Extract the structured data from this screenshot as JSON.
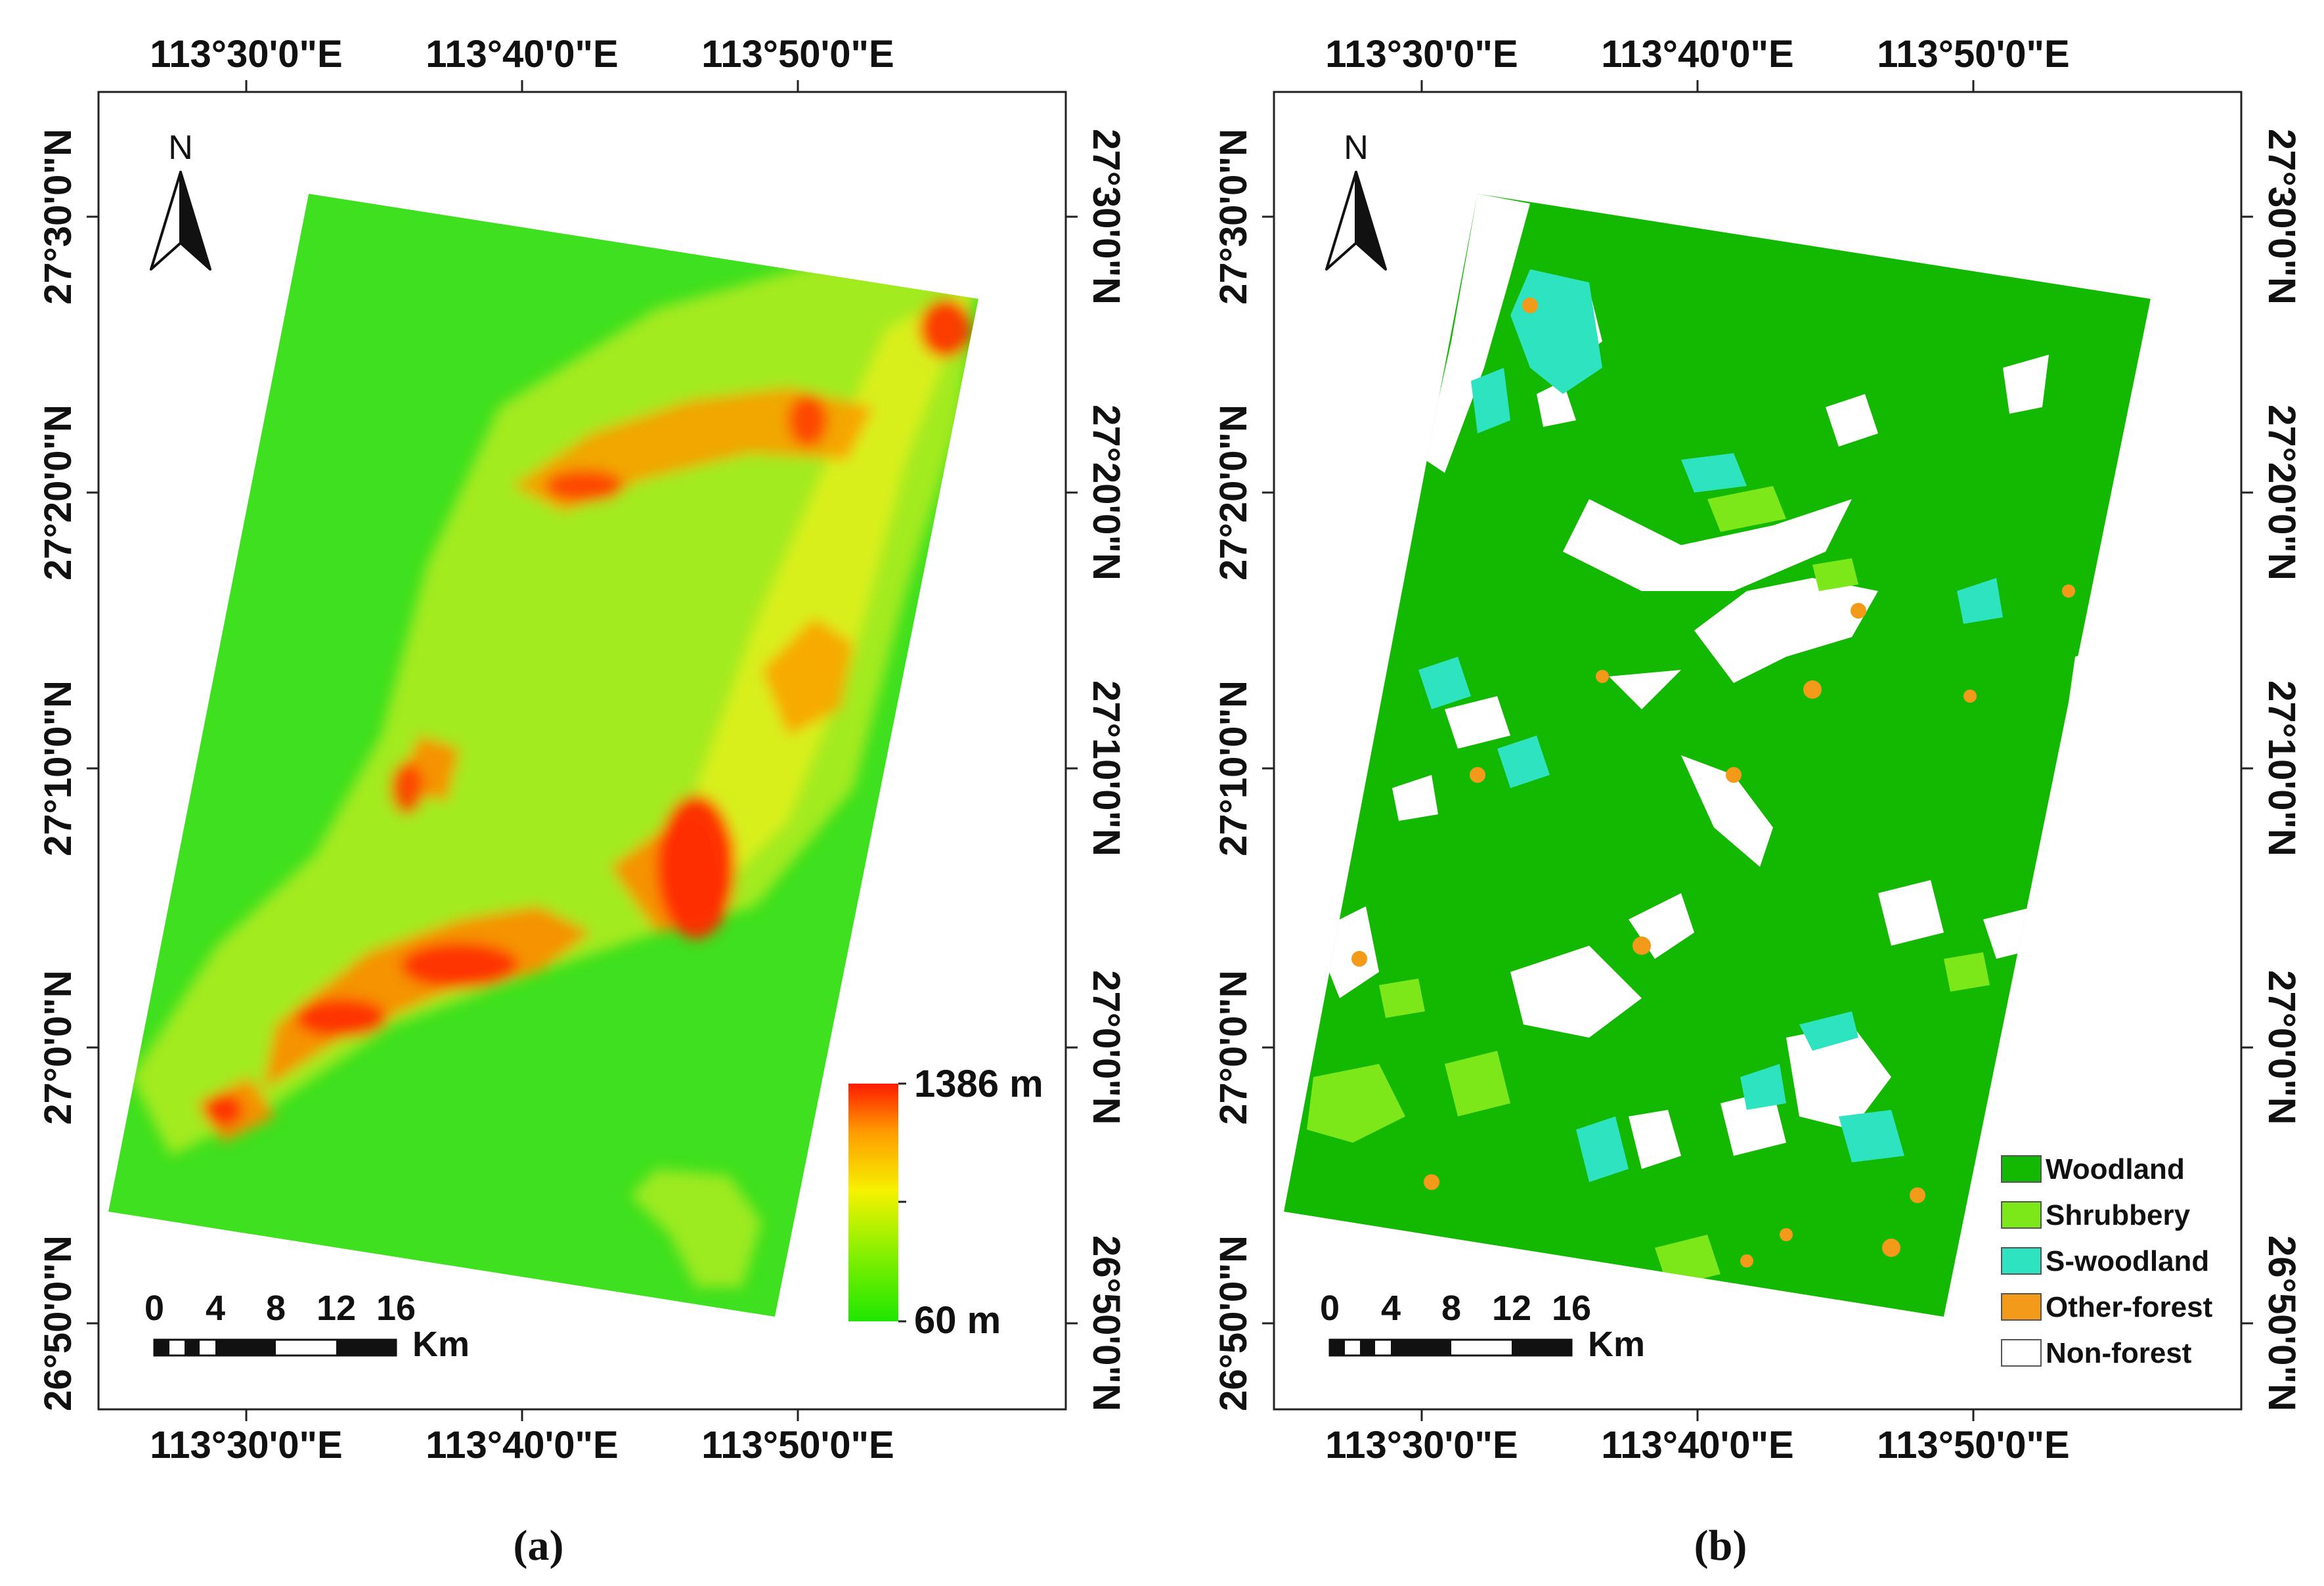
{
  "panels": [
    {
      "id": "a",
      "caption": "(a)",
      "x_ticks": [
        "113°30'0\"E",
        "113°40'0\"E",
        "113°50'0\"E"
      ],
      "y_ticks": [
        "27°30'0\"N",
        "27°20'0\"N",
        "27°10'0\"N",
        "27°0'0\"N",
        "26°50'0\"N"
      ],
      "north_label": "N",
      "scale_labels": [
        "0",
        "4",
        "8",
        "12",
        "16"
      ],
      "scale_unit": "Km",
      "elevation_legend": {
        "max_label": "1386 m",
        "min_label": "60 m",
        "colors": [
          "#ff1a00",
          "#ff9a00",
          "#f6f200",
          "#8cf000",
          "#1ee600"
        ]
      }
    },
    {
      "id": "b",
      "caption": "(b)",
      "x_ticks": [
        "113°30'0\"E",
        "113°40'0\"E",
        "113°50'0\"E"
      ],
      "y_ticks": [
        "27°30'0\"N",
        "27°20'0\"N",
        "27°10'0\"N",
        "27°0'0\"N",
        "26°50'0\"N"
      ],
      "north_label": "N",
      "scale_labels": [
        "0",
        "4",
        "8",
        "12",
        "16"
      ],
      "scale_unit": "Km",
      "legend": [
        {
          "label": "Woodland",
          "color": "#13b800"
        },
        {
          "label": "Shrubbery",
          "color": "#7ce81a"
        },
        {
          "label": "S-woodland",
          "color": "#2de3c0"
        },
        {
          "label": "Other-forest",
          "color": "#f39a1a"
        },
        {
          "label": "Non-forest",
          "color": "#ffffff"
        }
      ]
    }
  ],
  "colors": {
    "dem_low": "#3fe01f",
    "dem_mid": "#c8ef22",
    "dem_high": "#ff3a10",
    "woodland": "#13b800",
    "shrubbery": "#7ce81a",
    "s_woodland": "#2de3c0",
    "other_forest": "#f39a1a",
    "non_forest": "#ffffff"
  }
}
